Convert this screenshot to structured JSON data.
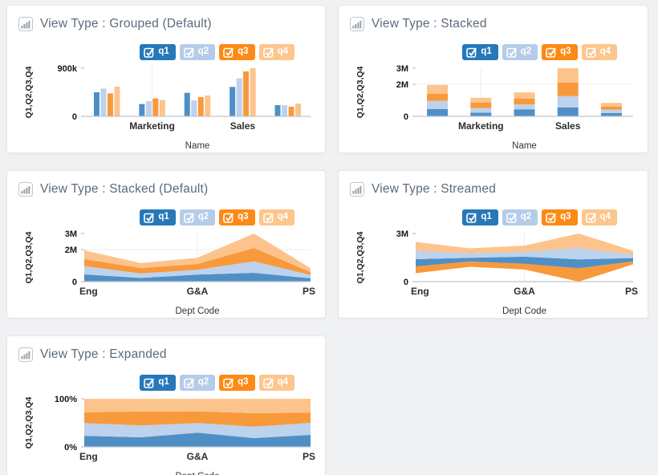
{
  "app": {
    "background_color": "#f0f1f3",
    "panel_background": "#ffffff"
  },
  "colors": {
    "legend": {
      "q1": "#2678b9",
      "q2": "#b5cce9",
      "q3": "#fd8a14",
      "q4": "#fcc68d"
    },
    "series": {
      "q1": "#4e90c6",
      "q2": "#bdd2ec",
      "q3": "#f8993c",
      "q4": "#fcc48c"
    },
    "title_text": "#5d6b79",
    "axis_text": "#2d2d2d",
    "grid": "#ececec",
    "baseline": "#c2c6c9"
  },
  "legend": {
    "items": [
      {
        "label": "q1",
        "checked": true
      },
      {
        "label": "q2",
        "checked": true
      },
      {
        "label": "q3",
        "checked": true
      },
      {
        "label": "q4",
        "checked": true
      }
    ]
  },
  "chart_data": [
    {
      "type": "bar",
      "variant": "grouped",
      "title": "View Type : Grouped (Default)",
      "xlabel": "Name",
      "ylabel": "Q1,Q2,Q3,Q4",
      "categories": [
        "",
        "Marketing",
        "",
        "Sales",
        ""
      ],
      "x_ticks": [
        {
          "i": 1,
          "label": "Marketing"
        },
        {
          "i": 3,
          "label": "Sales"
        }
      ],
      "x_grid": [
        1,
        3
      ],
      "ylim": [
        0,
        900000
      ],
      "y_ticks": [
        {
          "value": 900000,
          "label": "900k",
          "grid": false
        },
        {
          "value": 0,
          "label": "0",
          "grid": false
        }
      ],
      "legend_position": "top-right",
      "series": [
        {
          "name": "q1",
          "values": [
            450000,
            230000,
            440000,
            550000,
            210000
          ]
        },
        {
          "name": "q2",
          "values": [
            520000,
            285000,
            300000,
            710000,
            210000
          ]
        },
        {
          "name": "q3",
          "values": [
            430000,
            335000,
            360000,
            840000,
            180000
          ]
        },
        {
          "name": "q4",
          "values": [
            555000,
            305000,
            390000,
            900000,
            240000
          ]
        }
      ]
    },
    {
      "type": "bar",
      "variant": "stacked-bar",
      "title": "View Type : Stacked",
      "xlabel": "Name",
      "ylabel": "Q1,Q2,Q3,Q4",
      "categories": [
        "",
        "Marketing",
        "",
        "Sales",
        ""
      ],
      "x_ticks": [
        {
          "i": 1,
          "label": "Marketing"
        },
        {
          "i": 3,
          "label": "Sales"
        }
      ],
      "x_grid": [
        1,
        3
      ],
      "ylim": [
        0,
        3000000
      ],
      "y_ticks": [
        {
          "value": 3000000,
          "label": "3M",
          "grid": false
        },
        {
          "value": 2000000,
          "label": "2M",
          "grid": true
        },
        {
          "value": 0,
          "label": "0",
          "grid": false
        }
      ],
      "legend_position": "top-right",
      "series": [
        {
          "name": "q1",
          "values": [
            450000,
            230000,
            440000,
            550000,
            210000
          ]
        },
        {
          "name": "q2",
          "values": [
            520000,
            285000,
            300000,
            710000,
            210000
          ]
        },
        {
          "name": "q3",
          "values": [
            430000,
            335000,
            360000,
            840000,
            180000
          ]
        },
        {
          "name": "q4",
          "values": [
            555000,
            305000,
            390000,
            900000,
            240000
          ]
        }
      ]
    },
    {
      "type": "area",
      "variant": "stacked-area",
      "title": "View Type : Stacked (Default)",
      "xlabel": "Dept Code",
      "ylabel": "Q1,Q2,Q3,Q4",
      "categories": [
        "Eng",
        "",
        "G&A",
        "",
        "PS"
      ],
      "x_ticks": [
        {
          "i": 0,
          "label": "Eng",
          "anchor": "start"
        },
        {
          "i": 2,
          "label": "G&A",
          "anchor": "middle"
        },
        {
          "i": 4,
          "label": "PS",
          "anchor": "end"
        }
      ],
      "x_grid": [
        2
      ],
      "ylim": [
        0,
        3000000
      ],
      "y_ticks": [
        {
          "value": 3000000,
          "label": "3M",
          "grid": false
        },
        {
          "value": 2000000,
          "label": "2M",
          "grid": true
        },
        {
          "value": 0,
          "label": "0",
          "grid": false
        }
      ],
      "legend_position": "top-right",
      "series": [
        {
          "name": "q1",
          "values": [
            450000,
            230000,
            440000,
            550000,
            210000
          ]
        },
        {
          "name": "q2",
          "values": [
            520000,
            285000,
            300000,
            710000,
            210000
          ]
        },
        {
          "name": "q3",
          "values": [
            430000,
            335000,
            360000,
            840000,
            180000
          ]
        },
        {
          "name": "q4",
          "values": [
            555000,
            305000,
            390000,
            900000,
            240000
          ]
        }
      ]
    },
    {
      "type": "area",
      "variant": "stream",
      "title": "View Type : Streamed",
      "xlabel": "Dept Code",
      "ylabel": "Q1,Q2,Q3,Q4",
      "categories": [
        "Eng",
        "",
        "G&A",
        "",
        "PS"
      ],
      "x_ticks": [
        {
          "i": 0,
          "label": "Eng",
          "anchor": "start"
        },
        {
          "i": 2,
          "label": "G&A",
          "anchor": "middle"
        },
        {
          "i": 4,
          "label": "PS",
          "anchor": "end"
        }
      ],
      "x_grid": [
        2
      ],
      "ylim": [
        0,
        3000000
      ],
      "y_ticks": [
        {
          "value": 3000000,
          "label": "3M",
          "grid": false
        },
        {
          "value": 0,
          "label": "0",
          "grid": false
        }
      ],
      "stream_order": [
        "q3",
        "q1",
        "q2",
        "q4"
      ],
      "legend_position": "top-right",
      "series": [
        {
          "name": "q1",
          "values": [
            450000,
            230000,
            440000,
            550000,
            210000
          ]
        },
        {
          "name": "q2",
          "values": [
            520000,
            285000,
            300000,
            710000,
            210000
          ]
        },
        {
          "name": "q3",
          "values": [
            430000,
            335000,
            360000,
            840000,
            180000
          ]
        },
        {
          "name": "q4",
          "values": [
            555000,
            305000,
            390000,
            900000,
            240000
          ]
        }
      ]
    },
    {
      "type": "area",
      "variant": "expanded",
      "title": "View Type : Expanded",
      "xlabel": "Dept Code",
      "ylabel": "Q1,Q2,Q3,Q4",
      "categories": [
        "Eng",
        "",
        "G&A",
        "",
        "PS"
      ],
      "x_ticks": [
        {
          "i": 0,
          "label": "Eng",
          "anchor": "start"
        },
        {
          "i": 2,
          "label": "G&A",
          "anchor": "middle"
        },
        {
          "i": 4,
          "label": "PS",
          "anchor": "end"
        }
      ],
      "x_grid": [
        2
      ],
      "ylim": [
        0,
        100
      ],
      "y_ticks": [
        {
          "value": 100,
          "label": "100%",
          "grid": false
        },
        {
          "value": 0,
          "label": "0%",
          "grid": false
        }
      ],
      "legend_position": "top-right",
      "series": [
        {
          "name": "q1",
          "values": [
            450000,
            230000,
            440000,
            550000,
            210000
          ]
        },
        {
          "name": "q2",
          "values": [
            520000,
            285000,
            300000,
            710000,
            210000
          ]
        },
        {
          "name": "q3",
          "values": [
            430000,
            335000,
            360000,
            840000,
            180000
          ]
        },
        {
          "name": "q4",
          "values": [
            555000,
            305000,
            390000,
            900000,
            240000
          ]
        }
      ]
    }
  ]
}
